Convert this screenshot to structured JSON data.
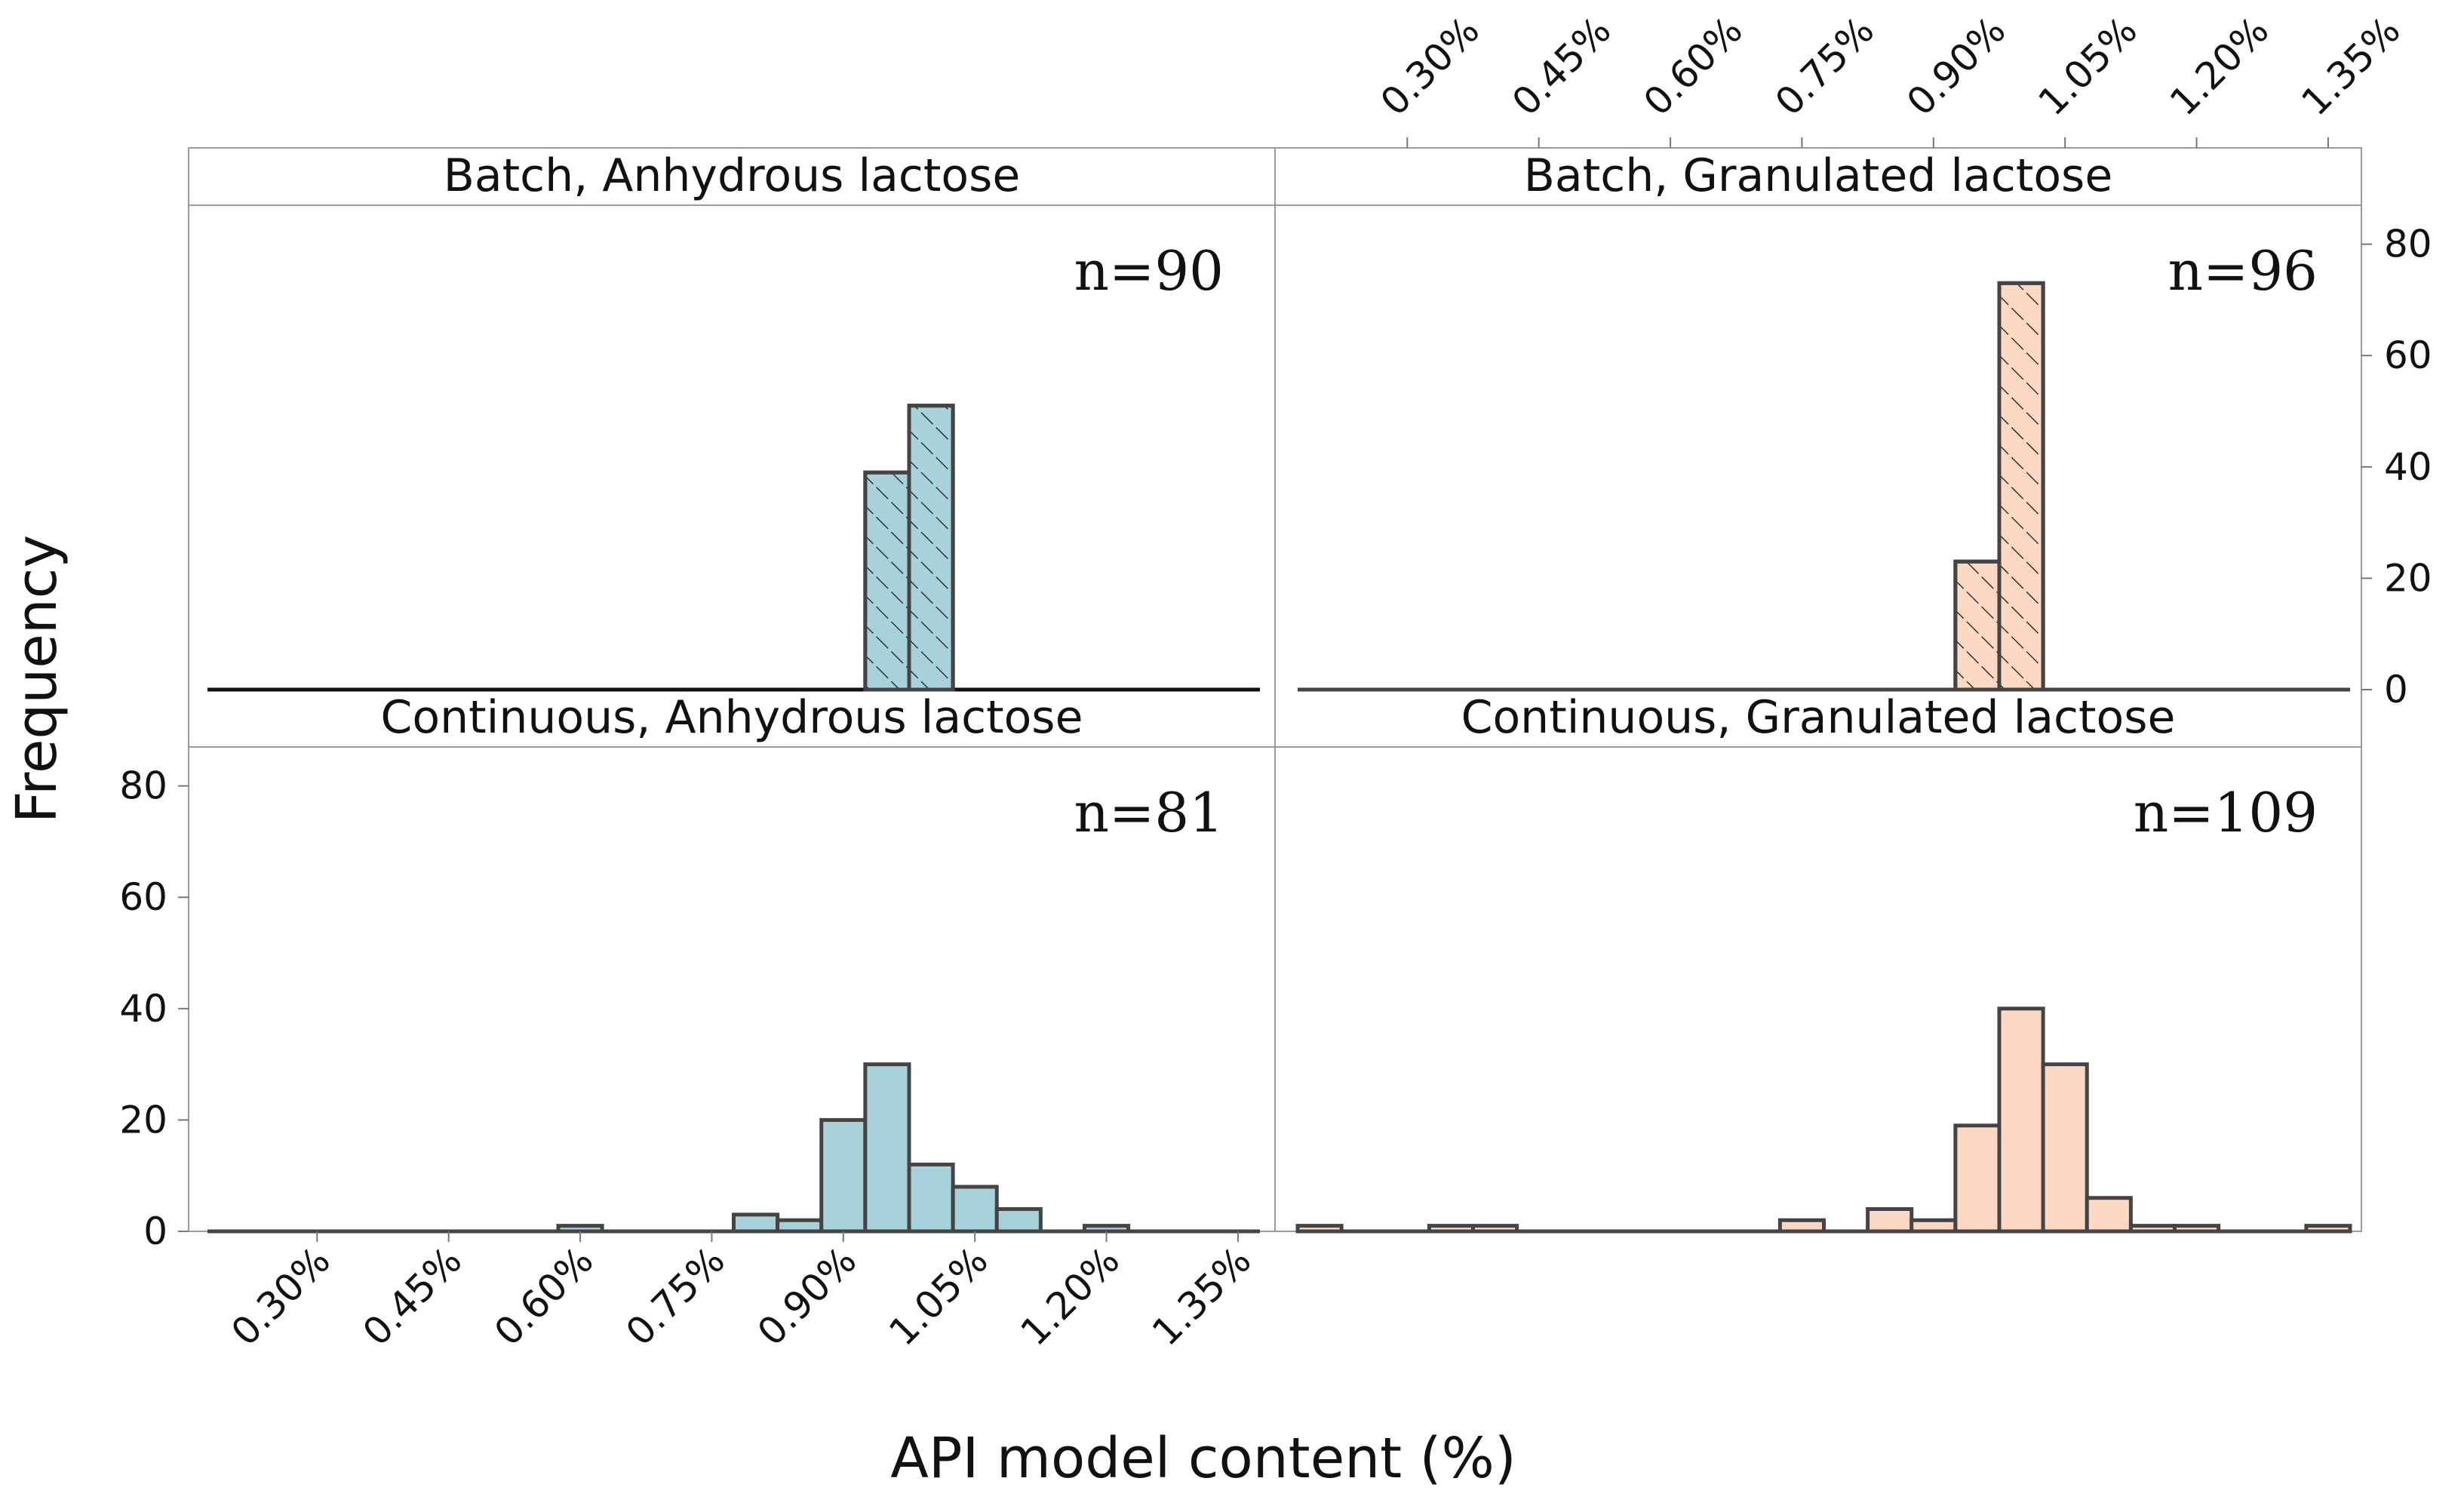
{
  "chart_data": {
    "type": "histogram",
    "layout": "2x2 facet grid",
    "x_axis_label": "API model content (%)",
    "y_axis_label": "Frequency",
    "x_ticks": [
      "0.30%",
      "0.45%",
      "0.60%",
      "0.75%",
      "0.90%",
      "1.05%",
      "1.20%",
      "1.35%"
    ],
    "x_tick_values": [
      0.3,
      0.45,
      0.6,
      0.75,
      0.9,
      1.05,
      1.2,
      1.35
    ],
    "xlim": [
      0.175,
      1.375
    ],
    "y_ticks": [
      "0",
      "20",
      "40",
      "60",
      "80"
    ],
    "y_tick_values": [
      0,
      20,
      40,
      60,
      80
    ],
    "ylim": [
      0,
      87
    ],
    "bin_width": 0.05,
    "panels": [
      {
        "title": "Batch, Anhydrous lactose",
        "n_label": "n=90",
        "color": "#a8d2da",
        "hatched": true,
        "bins": [
          {
            "start": 0.925,
            "count": 39
          },
          {
            "start": 0.975,
            "count": 51
          }
        ]
      },
      {
        "title": "Batch, Granulated lactose",
        "n_label": "n=96",
        "color": "#fdd9c3",
        "hatched": true,
        "bins": [
          {
            "start": 0.925,
            "count": 23
          },
          {
            "start": 0.975,
            "count": 73
          }
        ]
      },
      {
        "title": "Continuous, Anhydrous lactose",
        "n_label": "n=81",
        "color": "#a8d2da",
        "hatched": false,
        "bins": [
          {
            "start": 0.575,
            "count": 1
          },
          {
            "start": 0.775,
            "count": 3
          },
          {
            "start": 0.825,
            "count": 2
          },
          {
            "start": 0.875,
            "count": 20
          },
          {
            "start": 0.925,
            "count": 30
          },
          {
            "start": 0.975,
            "count": 12
          },
          {
            "start": 1.025,
            "count": 8
          },
          {
            "start": 1.075,
            "count": 4
          },
          {
            "start": 1.175,
            "count": 1
          }
        ]
      },
      {
        "title": "Continuous, Granulated lactose",
        "n_label": "n=109",
        "color": "#fdd9c3",
        "hatched": false,
        "bins": [
          {
            "start": 0.175,
            "count": 1
          },
          {
            "start": 0.325,
            "count": 1
          },
          {
            "start": 0.375,
            "count": 1
          },
          {
            "start": 0.725,
            "count": 2
          },
          {
            "start": 0.825,
            "count": 4
          },
          {
            "start": 0.875,
            "count": 2
          },
          {
            "start": 0.925,
            "count": 19
          },
          {
            "start": 0.975,
            "count": 40
          },
          {
            "start": 1.025,
            "count": 30
          },
          {
            "start": 1.075,
            "count": 6
          },
          {
            "start": 1.125,
            "count": 1
          },
          {
            "start": 1.175,
            "count": 1
          },
          {
            "start": 1.325,
            "count": 1
          }
        ]
      }
    ]
  }
}
